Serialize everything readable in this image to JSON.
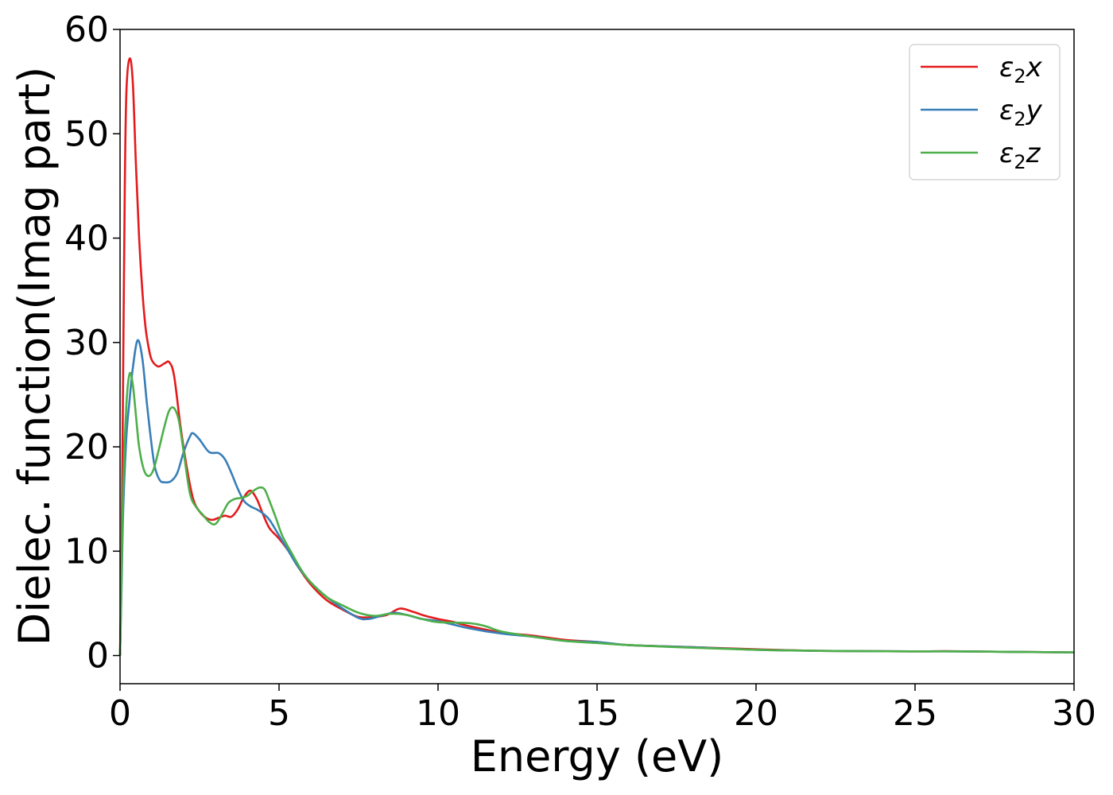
{
  "chart_data": {
    "type": "line",
    "xlabel": "Energy (eV)",
    "ylabel": "Dielec. function(Imag part)",
    "xlim": [
      0,
      30
    ],
    "ylim": [
      -2.7,
      60
    ],
    "xticks": [
      0,
      5,
      10,
      15,
      20,
      25,
      30
    ],
    "yticks": [
      0,
      10,
      20,
      30,
      40,
      50,
      60
    ],
    "grid": false,
    "legend_position": "top-right",
    "series": [
      {
        "name": "ε₂x",
        "legend_main": "ε",
        "legend_sub": "2",
        "legend_suffix": "x",
        "color": "#e41a1c",
        "points": [
          [
            0,
            0
          ],
          [
            0.05,
            10
          ],
          [
            0.1,
            28
          ],
          [
            0.15,
            45
          ],
          [
            0.2,
            54
          ],
          [
            0.3,
            57.2
          ],
          [
            0.4,
            55
          ],
          [
            0.5,
            47
          ],
          [
            0.6,
            40
          ],
          [
            0.7,
            35
          ],
          [
            0.8,
            31.5
          ],
          [
            0.9,
            29.5
          ],
          [
            1.0,
            28.3
          ],
          [
            1.2,
            27.7
          ],
          [
            1.4,
            28.0
          ],
          [
            1.55,
            28.1
          ],
          [
            1.7,
            26.8
          ],
          [
            1.9,
            22
          ],
          [
            2.1,
            18
          ],
          [
            2.3,
            15
          ],
          [
            2.5,
            13.8
          ],
          [
            2.7,
            13.2
          ],
          [
            2.9,
            13.0
          ],
          [
            3.1,
            13.2
          ],
          [
            3.3,
            13.4
          ],
          [
            3.5,
            13.3
          ],
          [
            3.7,
            14.0
          ],
          [
            3.9,
            15.2
          ],
          [
            4.1,
            15.8
          ],
          [
            4.3,
            15.0
          ],
          [
            4.5,
            13.5
          ],
          [
            4.7,
            12.2
          ],
          [
            5.0,
            11.2
          ],
          [
            5.3,
            10.0
          ],
          [
            5.6,
            8.5
          ],
          [
            6.0,
            6.8
          ],
          [
            6.5,
            5.3
          ],
          [
            7.0,
            4.4
          ],
          [
            7.5,
            3.7
          ],
          [
            8.0,
            3.7
          ],
          [
            8.4,
            3.9
          ],
          [
            8.8,
            4.5
          ],
          [
            9.2,
            4.2
          ],
          [
            9.6,
            3.8
          ],
          [
            10,
            3.5
          ],
          [
            10.5,
            3.2
          ],
          [
            11,
            2.8
          ],
          [
            12,
            2.2
          ],
          [
            13,
            1.9
          ],
          [
            14,
            1.5
          ],
          [
            15,
            1.3
          ],
          [
            16,
            1.0
          ],
          [
            18,
            0.8
          ],
          [
            20,
            0.6
          ],
          [
            22,
            0.45
          ],
          [
            25,
            0.4
          ],
          [
            26,
            0.42
          ],
          [
            28,
            0.35
          ],
          [
            30,
            0.3
          ]
        ]
      },
      {
        "name": "ε₂y",
        "legend_main": "ε",
        "legend_sub": "2",
        "legend_suffix": "y",
        "color": "#377eb8",
        "points": [
          [
            0,
            0
          ],
          [
            0.05,
            7
          ],
          [
            0.1,
            14
          ],
          [
            0.2,
            21
          ],
          [
            0.3,
            24.5
          ],
          [
            0.4,
            27.5
          ],
          [
            0.55,
            30.2
          ],
          [
            0.7,
            28.5
          ],
          [
            0.85,
            24
          ],
          [
            1.0,
            20
          ],
          [
            1.1,
            18
          ],
          [
            1.25,
            16.8
          ],
          [
            1.4,
            16.6
          ],
          [
            1.6,
            16.7
          ],
          [
            1.8,
            17.5
          ],
          [
            2.0,
            19.5
          ],
          [
            2.2,
            21.0
          ],
          [
            2.3,
            21.3
          ],
          [
            2.5,
            20.7
          ],
          [
            2.8,
            19.5
          ],
          [
            3.1,
            19.4
          ],
          [
            3.3,
            18.8
          ],
          [
            3.5,
            17.5
          ],
          [
            3.7,
            16.0
          ],
          [
            3.9,
            14.8
          ],
          [
            4.1,
            14.3
          ],
          [
            4.3,
            14.0
          ],
          [
            4.5,
            13.6
          ],
          [
            4.7,
            13.0
          ],
          [
            5.0,
            11.5
          ],
          [
            5.3,
            10.0
          ],
          [
            5.6,
            8.5
          ],
          [
            6.0,
            7.0
          ],
          [
            6.5,
            5.6
          ],
          [
            7.0,
            4.5
          ],
          [
            7.5,
            3.6
          ],
          [
            7.8,
            3.5
          ],
          [
            8.2,
            3.8
          ],
          [
            8.6,
            4.1
          ],
          [
            9.0,
            3.9
          ],
          [
            9.5,
            3.5
          ],
          [
            10,
            3.3
          ],
          [
            11,
            2.6
          ],
          [
            12,
            2.1
          ],
          [
            13,
            1.8
          ],
          [
            14,
            1.4
          ],
          [
            15,
            1.3
          ],
          [
            16,
            1.0
          ],
          [
            18,
            0.8
          ],
          [
            20,
            0.55
          ],
          [
            22,
            0.45
          ],
          [
            25,
            0.4
          ],
          [
            26,
            0.4
          ],
          [
            28,
            0.35
          ],
          [
            30,
            0.3
          ]
        ]
      },
      {
        "name": "ε₂z",
        "legend_main": "ε",
        "legend_sub": "2",
        "legend_suffix": "z",
        "color": "#4daf4a",
        "points": [
          [
            0,
            0
          ],
          [
            0.05,
            8
          ],
          [
            0.1,
            16
          ],
          [
            0.2,
            24
          ],
          [
            0.3,
            27.0
          ],
          [
            0.4,
            26.0
          ],
          [
            0.5,
            23
          ],
          [
            0.6,
            20
          ],
          [
            0.75,
            17.8
          ],
          [
            0.9,
            17.2
          ],
          [
            1.05,
            17.8
          ],
          [
            1.2,
            19.5
          ],
          [
            1.4,
            22
          ],
          [
            1.55,
            23.5
          ],
          [
            1.7,
            23.7
          ],
          [
            1.85,
            22.5
          ],
          [
            2.0,
            19.5
          ],
          [
            2.2,
            15.5
          ],
          [
            2.4,
            14.2
          ],
          [
            2.6,
            13.5
          ],
          [
            2.8,
            12.8
          ],
          [
            3.0,
            12.6
          ],
          [
            3.2,
            13.5
          ],
          [
            3.4,
            14.6
          ],
          [
            3.6,
            15.0
          ],
          [
            3.8,
            15.1
          ],
          [
            4.0,
            15.3
          ],
          [
            4.2,
            15.8
          ],
          [
            4.4,
            16.1
          ],
          [
            4.55,
            15.9
          ],
          [
            4.7,
            14.8
          ],
          [
            4.9,
            13.2
          ],
          [
            5.1,
            11.5
          ],
          [
            5.4,
            9.8
          ],
          [
            5.7,
            8.2
          ],
          [
            6.0,
            7.0
          ],
          [
            6.5,
            5.6
          ],
          [
            7.0,
            4.8
          ],
          [
            7.5,
            4.1
          ],
          [
            8.0,
            3.8
          ],
          [
            8.5,
            4.0
          ],
          [
            9.0,
            3.9
          ],
          [
            9.5,
            3.5
          ],
          [
            10,
            3.2
          ],
          [
            11,
            3.1
          ],
          [
            11.5,
            2.8
          ],
          [
            12,
            2.3
          ],
          [
            13,
            1.8
          ],
          [
            14,
            1.4
          ],
          [
            15,
            1.2
          ],
          [
            16,
            1.0
          ],
          [
            18,
            0.75
          ],
          [
            20,
            0.55
          ],
          [
            22,
            0.45
          ],
          [
            25,
            0.4
          ],
          [
            26,
            0.4
          ],
          [
            28,
            0.35
          ],
          [
            30,
            0.3
          ]
        ]
      }
    ]
  }
}
